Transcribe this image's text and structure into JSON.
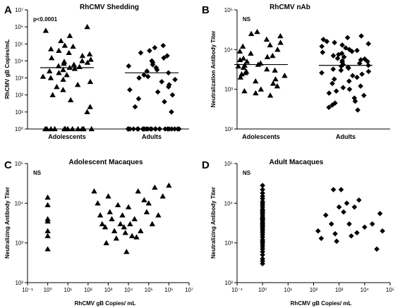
{
  "chart_data": [
    {
      "panel": "A",
      "type": "scatter",
      "title": "RhCMV Shedding",
      "ylabel": "RhCMV gB Copies/mL",
      "yscale": "log",
      "ylim": [
        1,
        10000000
      ],
      "yticks": [
        {
          "v": 1,
          "l": "10⁰"
        },
        {
          "v": 10,
          "l": "10¹"
        },
        {
          "v": 100,
          "l": "10²"
        },
        {
          "v": 1000,
          "l": "10³"
        },
        {
          "v": 10000,
          "l": "10⁴"
        },
        {
          "v": 100000,
          "l": "10⁵"
        },
        {
          "v": 1000000,
          "l": "10⁶"
        },
        {
          "v": 10000000,
          "l": "10⁷"
        }
      ],
      "categories": [
        "Adolescents",
        "Adults"
      ],
      "annotation": "p<0.0001",
      "series": [
        {
          "category": "Adolescents",
          "marker": "triangle",
          "median": 4000,
          "values": [
            1000000,
            600000,
            300000,
            150000,
            80000,
            70000,
            50000,
            40000,
            30000,
            25000,
            20000,
            15000,
            12000,
            10000,
            9000,
            8000,
            7000,
            6000,
            5000,
            4500,
            4000,
            3500,
            3000,
            2500,
            2000,
            1500,
            1200,
            1000,
            800,
            600,
            400,
            300,
            200,
            100,
            50,
            20,
            10,
            1,
            1,
            1,
            1,
            1,
            1,
            1,
            1,
            1,
            1,
            1,
            1
          ]
        },
        {
          "category": "Adults",
          "marker": "diamond",
          "median": 2000,
          "values": [
            80000,
            60000,
            40000,
            30000,
            20000,
            15000,
            10000,
            8000,
            6000,
            5000,
            4000,
            3000,
            2500,
            2000,
            1500,
            1200,
            1000,
            800,
            600,
            400,
            300,
            200,
            150,
            100,
            60,
            40,
            20,
            10,
            1,
            1,
            1,
            1,
            1,
            1,
            1,
            1,
            1,
            1,
            1,
            1,
            1,
            1,
            1,
            1,
            1,
            1,
            1,
            1,
            1,
            1,
            1,
            1
          ]
        }
      ]
    },
    {
      "panel": "B",
      "type": "scatter",
      "title": "RhCMV nAb",
      "ylabel": "Neutralization Antibody Titer",
      "yscale": "log",
      "ylim": [
        100,
        100000
      ],
      "yticks": [
        {
          "v": 100,
          "l": "10²"
        },
        {
          "v": 1000,
          "l": "10³"
        },
        {
          "v": 10000,
          "l": "10⁴"
        },
        {
          "v": 100000,
          "l": "10⁵"
        }
      ],
      "categories": [
        "Adolescents",
        "Adults"
      ],
      "annotation": "NS",
      "series": [
        {
          "category": "Adolescents",
          "marker": "triangle",
          "median": 4200,
          "values": [
            28000,
            25000,
            22000,
            18000,
            15000,
            13000,
            12000,
            10000,
            9000,
            8000,
            7000,
            6500,
            6000,
            5500,
            5000,
            4500,
            4200,
            4000,
            3800,
            3500,
            3200,
            3000,
            2800,
            2600,
            2400,
            2200,
            2000,
            1800,
            1600,
            1400,
            1200,
            1000,
            900,
            800,
            700
          ]
        },
        {
          "category": "Adults",
          "marker": "diamond",
          "median": 4000,
          "values": [
            22000,
            20000,
            18000,
            16000,
            15000,
            14000,
            13000,
            12000,
            11000,
            10000,
            9500,
            9000,
            8500,
            8000,
            7500,
            7000,
            6500,
            6000,
            5800,
            5500,
            5200,
            5000,
            4800,
            4500,
            4200,
            4000,
            3800,
            3600,
            3400,
            3200,
            3000,
            2800,
            2600,
            2400,
            2200,
            2000,
            1800,
            1600,
            1400,
            1200,
            1100,
            1000,
            900,
            800,
            700,
            600,
            500,
            450,
            400,
            350,
            300
          ]
        }
      ]
    },
    {
      "panel": "C",
      "type": "scatter",
      "title": "Adolescent Macaques",
      "xlabel": "RhCMV gB Copies/ mL",
      "ylabel": "Neutralizing Antibody Titer",
      "xscale": "log",
      "yscale": "log",
      "xlim": [
        0.1,
        10000000
      ],
      "ylim": [
        100,
        100000
      ],
      "xticks": [
        {
          "v": 0.1,
          "l": "10⁻¹"
        },
        {
          "v": 1,
          "l": "10⁰"
        },
        {
          "v": 10,
          "l": "10¹"
        },
        {
          "v": 100,
          "l": "10²"
        },
        {
          "v": 1000,
          "l": "10³"
        },
        {
          "v": 10000,
          "l": "10⁴"
        },
        {
          "v": 100000,
          "l": "10⁵"
        },
        {
          "v": 1000000,
          "l": "10⁶"
        },
        {
          "v": 10000000,
          "l": "10⁷"
        }
      ],
      "yticks": [
        {
          "v": 100,
          "l": "10²"
        },
        {
          "v": 1000,
          "l": "10³"
        },
        {
          "v": 10000,
          "l": "10⁴"
        },
        {
          "v": 100000,
          "l": "10⁵"
        }
      ],
      "annotation": "NS",
      "marker": "triangle",
      "points": [
        [
          1,
          14000
        ],
        [
          1,
          9000
        ],
        [
          1,
          4000
        ],
        [
          1,
          3500
        ],
        [
          1,
          2000
        ],
        [
          1,
          1500
        ],
        [
          1,
          700
        ],
        [
          200,
          20000
        ],
        [
          300,
          10000
        ],
        [
          400,
          5000
        ],
        [
          500,
          3000
        ],
        [
          700,
          2500
        ],
        [
          800,
          1000
        ],
        [
          1000,
          15000
        ],
        [
          1200,
          6000
        ],
        [
          1500,
          4000
        ],
        [
          2000,
          2000
        ],
        [
          2500,
          1300
        ],
        [
          3000,
          9000
        ],
        [
          4000,
          3000
        ],
        [
          5000,
          5000
        ],
        [
          6000,
          2500
        ],
        [
          7000,
          1800
        ],
        [
          8000,
          600
        ],
        [
          10000,
          8000
        ],
        [
          12000,
          3000
        ],
        [
          15000,
          1500
        ],
        [
          20000,
          4000
        ],
        [
          25000,
          1400
        ],
        [
          30000,
          20000
        ],
        [
          40000,
          2000
        ],
        [
          60000,
          12000
        ],
        [
          80000,
          6000
        ],
        [
          100000,
          10000
        ],
        [
          150000,
          3000
        ],
        [
          200000,
          25000
        ],
        [
          300000,
          5000
        ],
        [
          500000,
          15000
        ],
        [
          1000000,
          28000
        ]
      ]
    },
    {
      "panel": "D",
      "type": "scatter",
      "title": "Adult Macaques",
      "xlabel": "RhCMV gB Copies/ mL",
      "ylabel": "Neutralizing Antibody Titer",
      "xscale": "log",
      "yscale": "log",
      "xlim": [
        0.1,
        100000
      ],
      "ylim": [
        100,
        100000
      ],
      "xticks": [
        {
          "v": 0.1,
          "l": "10⁻¹"
        },
        {
          "v": 1,
          "l": "10⁰"
        },
        {
          "v": 10,
          "l": "10¹"
        },
        {
          "v": 100,
          "l": "10²"
        },
        {
          "v": 1000,
          "l": "10³"
        },
        {
          "v": 10000,
          "l": "10⁴"
        },
        {
          "v": 100000,
          "l": "10⁵"
        }
      ],
      "yticks": [
        {
          "v": 100,
          "l": "10²"
        },
        {
          "v": 1000,
          "l": "10³"
        },
        {
          "v": 10000,
          "l": "10⁴"
        },
        {
          "v": 100000,
          "l": "10⁵"
        }
      ],
      "annotation": "NS",
      "marker": "diamond",
      "points": [
        [
          1,
          28000
        ],
        [
          1,
          22000
        ],
        [
          1,
          18000
        ],
        [
          1,
          15000
        ],
        [
          1,
          13000
        ],
        [
          1,
          11000
        ],
        [
          1,
          10000
        ],
        [
          1,
          9000
        ],
        [
          1,
          8000
        ],
        [
          1,
          7000
        ],
        [
          1,
          6500
        ],
        [
          1,
          6000
        ],
        [
          1,
          5500
        ],
        [
          1,
          5000
        ],
        [
          1,
          4500
        ],
        [
          1,
          4200
        ],
        [
          1,
          4000
        ],
        [
          1,
          3800
        ],
        [
          1,
          3500
        ],
        [
          1,
          3200
        ],
        [
          1,
          3000
        ],
        [
          1,
          2800
        ],
        [
          1,
          2600
        ],
        [
          1,
          2400
        ],
        [
          1,
          2200
        ],
        [
          1,
          2000
        ],
        [
          1,
          1800
        ],
        [
          1,
          1600
        ],
        [
          1,
          1400
        ],
        [
          1,
          1200
        ],
        [
          1,
          1100
        ],
        [
          1,
          1000
        ],
        [
          1,
          900
        ],
        [
          1,
          800
        ],
        [
          1,
          700
        ],
        [
          1,
          600
        ],
        [
          1,
          500
        ],
        [
          1,
          400
        ],
        [
          1,
          350
        ],
        [
          1,
          300
        ],
        [
          150,
          2000
        ],
        [
          200,
          1300
        ],
        [
          300,
          5000
        ],
        [
          500,
          3000
        ],
        [
          600,
          22000
        ],
        [
          700,
          1700
        ],
        [
          800,
          1100
        ],
        [
          1000,
          8000
        ],
        [
          1200,
          22000
        ],
        [
          1500,
          6000
        ],
        [
          2000,
          10000
        ],
        [
          2500,
          3000
        ],
        [
          3000,
          1500
        ],
        [
          4000,
          8000
        ],
        [
          5000,
          1800
        ],
        [
          6000,
          12000
        ],
        [
          10000,
          2500
        ],
        [
          20000,
          3000
        ],
        [
          30000,
          700
        ],
        [
          40000,
          5500
        ],
        [
          50000,
          2000
        ]
      ]
    }
  ]
}
